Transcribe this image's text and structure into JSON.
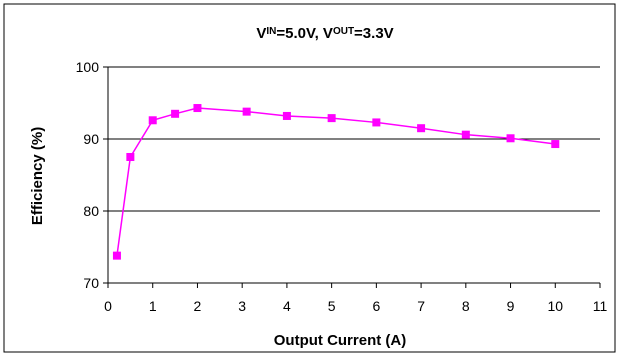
{
  "chart_data": {
    "type": "line",
    "title": {
      "v1": "V",
      "sub1": "IN",
      "mid": "=5.0V, V",
      "sub2": "OUT",
      "end": "=3.3V"
    },
    "xlabel": "Output Current (A)",
    "ylabel": "Efficiency (%)",
    "xlim": [
      0,
      11
    ],
    "ylim": [
      70,
      100
    ],
    "x_ticks": [
      "0",
      "1",
      "2",
      "3",
      "4",
      "5",
      "6",
      "7",
      "8",
      "9",
      "10",
      "11"
    ],
    "y_ticks": [
      "70",
      "80",
      "90",
      "100"
    ],
    "grid": "horizontal major gridlines",
    "series": [
      {
        "color": "#ff00ff",
        "marker": "square",
        "x": [
          0.2,
          0.5,
          1.0,
          1.5,
          2.0,
          3.1,
          4.0,
          5.0,
          6.0,
          7.0,
          8.0,
          9.0,
          10.0
        ],
        "y": [
          73.8,
          87.5,
          92.6,
          93.5,
          94.3,
          93.8,
          93.2,
          92.9,
          92.3,
          91.5,
          90.6,
          90.1,
          89.3
        ]
      }
    ]
  }
}
